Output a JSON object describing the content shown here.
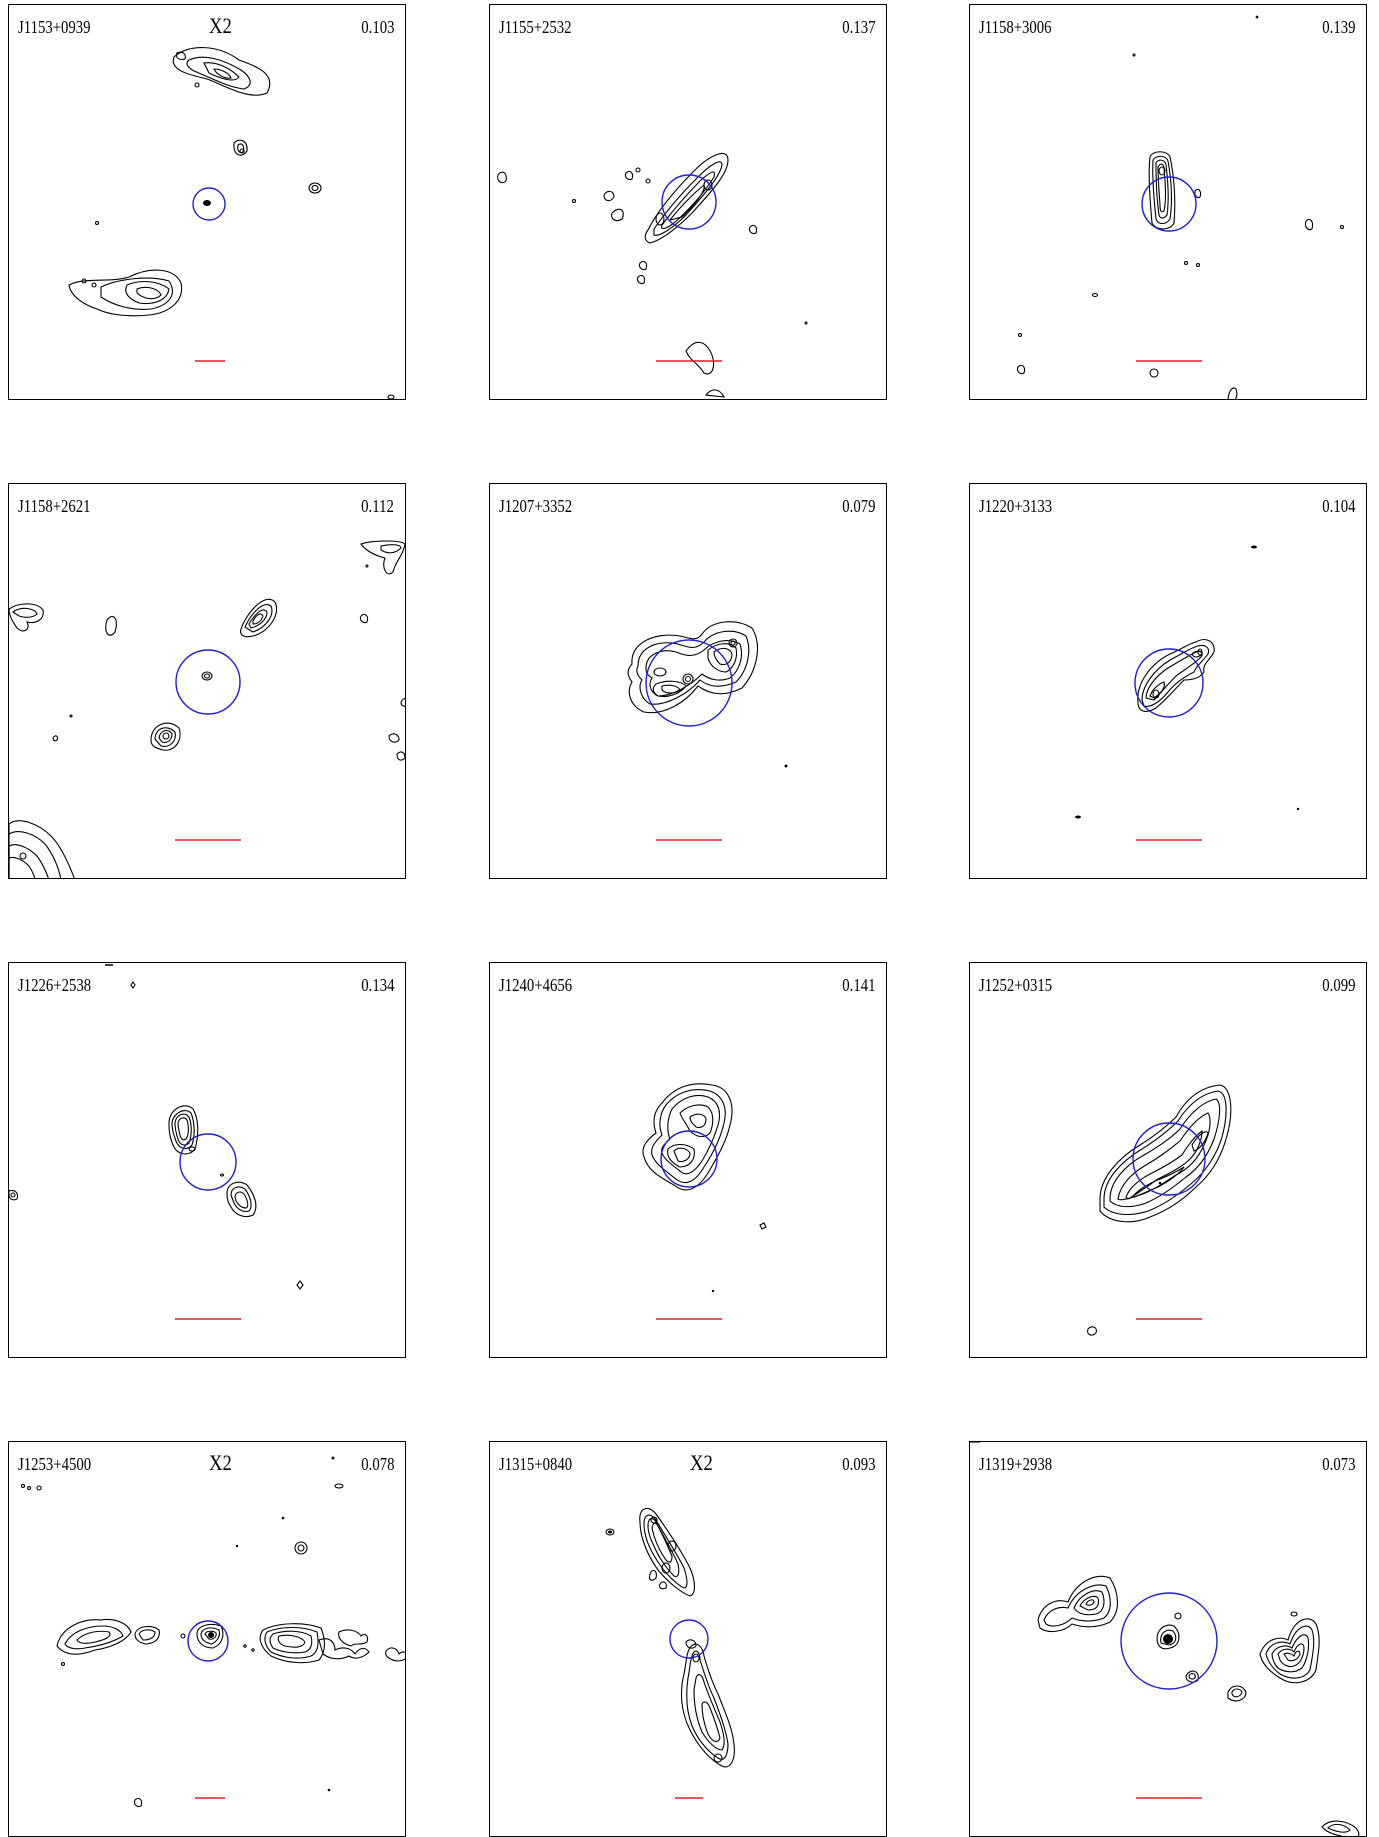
{
  "colors": {
    "circle": "#1f1fd6",
    "scale_bar": "#e02020",
    "contour": "#000000"
  },
  "panels": [
    {
      "name": "J1153+0939",
      "tag": "X2",
      "z": "0.103"
    },
    {
      "name": "J1155+2532",
      "tag": "",
      "z": "0.137"
    },
    {
      "name": "J1158+3006",
      "tag": "",
      "z": "0.139"
    },
    {
      "name": "J1158+2621",
      "tag": "",
      "z": "0.112"
    },
    {
      "name": "J1207+3352",
      "tag": "",
      "z": "0.079"
    },
    {
      "name": "J1220+3133",
      "tag": "",
      "z": "0.104"
    },
    {
      "name": "J1226+2538",
      "tag": "",
      "z": "0.134"
    },
    {
      "name": "J1240+4656",
      "tag": "",
      "z": "0.141"
    },
    {
      "name": "J1252+0315",
      "tag": "",
      "z": "0.099"
    },
    {
      "name": "J1253+4500",
      "tag": "X2",
      "z": "0.078"
    },
    {
      "name": "J1315+0840",
      "tag": "X2",
      "z": "0.093"
    },
    {
      "name": "J1319+2938",
      "tag": "",
      "z": "0.073"
    }
  ]
}
